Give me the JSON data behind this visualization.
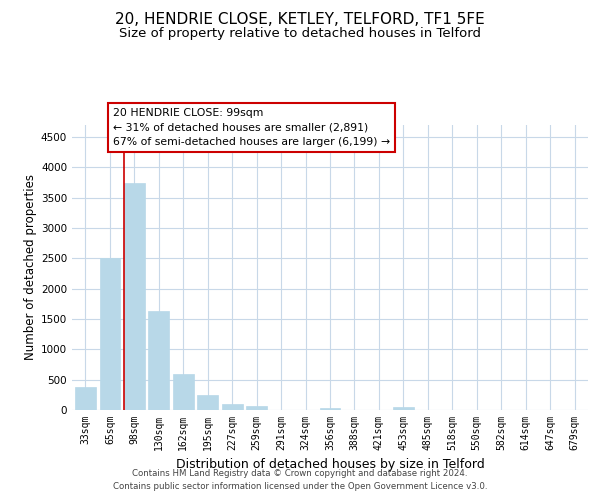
{
  "title": "20, HENDRIE CLOSE, KETLEY, TELFORD, TF1 5FE",
  "subtitle": "Size of property relative to detached houses in Telford",
  "xlabel": "Distribution of detached houses by size in Telford",
  "ylabel": "Number of detached properties",
  "bar_labels": [
    "33sqm",
    "65sqm",
    "98sqm",
    "130sqm",
    "162sqm",
    "195sqm",
    "227sqm",
    "259sqm",
    "291sqm",
    "324sqm",
    "356sqm",
    "388sqm",
    "421sqm",
    "453sqm",
    "485sqm",
    "518sqm",
    "550sqm",
    "582sqm",
    "614sqm",
    "647sqm",
    "679sqm"
  ],
  "bar_values": [
    380,
    2500,
    3750,
    1640,
    600,
    240,
    100,
    60,
    0,
    0,
    40,
    0,
    0,
    50,
    0,
    0,
    0,
    0,
    0,
    0,
    0
  ],
  "bar_color": "#b8d8e8",
  "marker_line_index": 2,
  "ylim": [
    0,
    4700
  ],
  "yticks": [
    0,
    500,
    1000,
    1500,
    2000,
    2500,
    3000,
    3500,
    4000,
    4500
  ],
  "annotation_title": "20 HENDRIE CLOSE: 99sqm",
  "annotation_line1": "← 31% of detached houses are smaller (2,891)",
  "annotation_line2": "67% of semi-detached houses are larger (6,199) →",
  "annotation_box_color": "#ffffff",
  "annotation_box_edge": "#cc0000",
  "footer_line1": "Contains HM Land Registry data © Crown copyright and database right 2024.",
  "footer_line2": "Contains public sector information licensed under the Open Government Licence v3.0.",
  "background_color": "#ffffff",
  "grid_color": "#c8d8e8",
  "title_fontsize": 11,
  "subtitle_fontsize": 9.5,
  "xlabel_fontsize": 9,
  "ylabel_fontsize": 8.5
}
